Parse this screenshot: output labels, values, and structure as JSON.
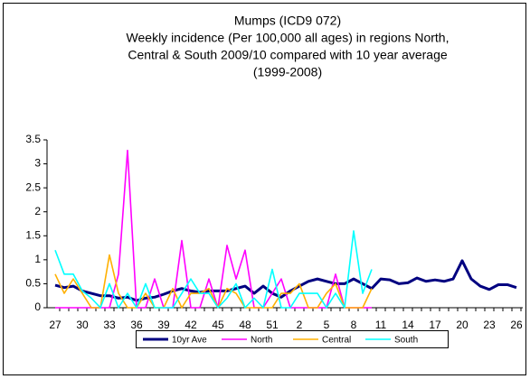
{
  "chart_data": {
    "type": "line",
    "title": "Mumps (ICD9 072)",
    "subtitle": [
      "Weekly incidence (Per 100,000 all ages) in regions North,",
      "Central & South 2009/10 compared with 10 year average",
      "(1999-2008)"
    ],
    "categories": [
      "27",
      null,
      null,
      "30",
      null,
      null,
      "33",
      null,
      null,
      "36",
      null,
      null,
      "39",
      null,
      null,
      "42",
      null,
      null,
      "45",
      null,
      null,
      "48",
      null,
      null,
      "51",
      null,
      null,
      "2",
      null,
      null,
      "5",
      null,
      null,
      "8",
      null,
      null,
      "11",
      null,
      null,
      "14",
      null,
      null,
      "17",
      null,
      null,
      "20",
      null,
      null,
      "23",
      null,
      null,
      "26"
    ],
    "ylim": [
      0,
      3.5
    ],
    "yticks": [
      0,
      0.5,
      1,
      1.5,
      2,
      2.5,
      3,
      3.5
    ],
    "series": [
      {
        "name": "10yr Ave",
        "color": "#000080",
        "values": [
          0.47,
          0.42,
          0.45,
          0.35,
          0.3,
          0.25,
          0.25,
          0.2,
          0.22,
          0.15,
          0.2,
          0.22,
          0.28,
          0.35,
          0.4,
          0.35,
          0.32,
          0.35,
          0.35,
          0.35,
          0.4,
          0.45,
          0.3,
          0.45,
          0.3,
          0.22,
          0.35,
          0.45,
          0.55,
          0.6,
          0.55,
          0.5,
          0.5,
          0.6,
          0.5,
          0.4,
          0.6,
          0.58,
          0.5,
          0.52,
          0.62,
          0.55,
          0.58,
          0.55,
          0.6,
          0.98,
          0.6,
          0.45,
          0.38,
          0.48,
          0.48,
          0.42
        ]
      },
      {
        "name": "North",
        "color": "#ff00ff",
        "values": [
          0,
          0,
          0,
          0,
          0,
          0,
          0,
          0.7,
          3.28,
          0,
          0,
          0.6,
          0,
          0,
          1.4,
          0,
          0,
          0.6,
          0,
          1.3,
          0.6,
          1.2,
          0,
          0,
          0.3,
          0.6,
          0,
          0,
          0,
          0,
          0,
          0.7,
          0,
          0,
          0,
          0,
          null,
          null,
          null,
          null,
          null,
          null,
          null,
          null,
          null,
          null,
          null,
          null,
          null,
          null,
          null,
          null
        ]
      },
      {
        "name": "Central",
        "color": "#ffb000",
        "values": [
          0.7,
          0.3,
          0.6,
          0.3,
          0,
          0,
          1.1,
          0.3,
          0,
          0,
          0.3,
          0,
          0,
          0.4,
          0,
          0.3,
          0.3,
          0.4,
          0,
          0.4,
          0.3,
          0,
          0,
          0,
          0,
          0.3,
          0.3,
          0.5,
          0,
          0,
          0.3,
          0.5,
          0,
          0,
          0,
          0.4,
          null,
          null,
          null,
          null,
          null,
          null,
          null,
          null,
          null,
          null,
          null,
          null,
          null,
          null,
          null,
          null
        ]
      },
      {
        "name": "South",
        "color": "#00ffff",
        "values": [
          1.2,
          0.7,
          0.7,
          0.35,
          0.2,
          0,
          0.5,
          0,
          0.3,
          0,
          0.5,
          0,
          0,
          0,
          0.3,
          0.6,
          0.3,
          0.3,
          0,
          0.2,
          0.5,
          0,
          0.2,
          0,
          0.8,
          0,
          0,
          0.3,
          0.3,
          0.3,
          0,
          0.3,
          0,
          1.6,
          0.3,
          0.8,
          null,
          null,
          null,
          null,
          null,
          null,
          null,
          null,
          null,
          null,
          null,
          null,
          null,
          null,
          null,
          null
        ]
      }
    ]
  }
}
